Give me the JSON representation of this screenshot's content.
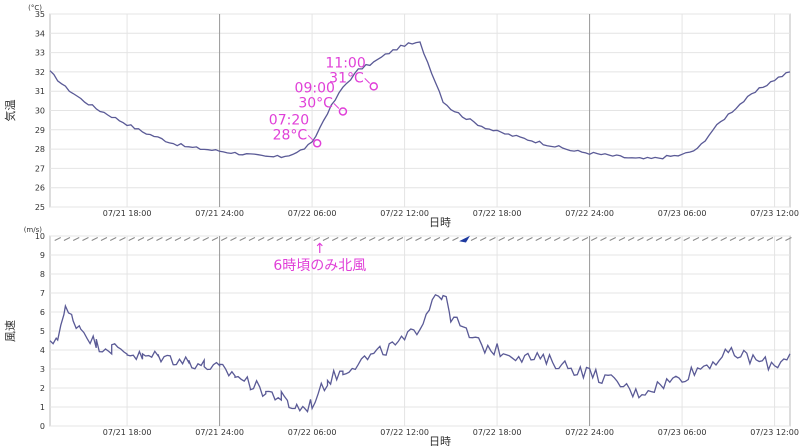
{
  "chart_data": [
    {
      "type": "line",
      "title": "",
      "ylabel": "気温",
      "unit": "(°C)",
      "xlabel": "日時",
      "ylim": [
        25,
        35
      ],
      "yticks": [
        "25",
        "26",
        "27",
        "28",
        "29",
        "30",
        "31",
        "32",
        "33",
        "34",
        "35"
      ],
      "x_tick_labels": [
        "07/21 18:00",
        "07/21 24:00",
        "07/22 06:00",
        "07/22 12:00",
        "07/22 18:00",
        "07/22 24:00",
        "07/23 06:00",
        "07/23 12:00"
      ],
      "x_range_hours": [
        13,
        61
      ],
      "grid": true,
      "series": [
        {
          "color": "#5a5a96",
          "x": [
            13,
            14,
            15,
            16,
            17,
            18,
            19,
            20,
            21,
            22,
            23,
            24,
            25,
            26,
            27,
            28,
            29,
            30,
            31,
            32,
            33,
            34,
            35,
            36,
            37,
            38,
            38.5,
            39,
            40,
            41,
            42,
            43,
            44,
            45,
            46,
            47,
            48,
            49,
            50,
            51,
            52,
            53,
            54,
            55,
            56,
            57,
            58,
            59,
            60,
            61
          ],
          "y": [
            32,
            31.2,
            30.6,
            30.1,
            29.7,
            29.3,
            28.9,
            28.6,
            28.3,
            28.1,
            28.0,
            27.9,
            27.8,
            27.7,
            27.6,
            27.6,
            27.8,
            28.3,
            29.9,
            31.2,
            32.1,
            32.5,
            33.0,
            33.4,
            33.5,
            31.5,
            30.5,
            30.1,
            29.6,
            29.2,
            28.9,
            28.7,
            28.5,
            28.3,
            28.1,
            27.9,
            27.8,
            27.7,
            27.6,
            27.5,
            27.5,
            27.6,
            27.7,
            28.0,
            29.0,
            29.8,
            30.5,
            31.1,
            31.6,
            32.0
          ]
        }
      ],
      "annotations": [
        {
          "time": "07:20",
          "value": "28°C",
          "x": 30.33,
          "y": 28.3
        },
        {
          "time": "09:00",
          "value": "30°C",
          "x": 32.0,
          "y": 29.95
        },
        {
          "time": "11:00",
          "value": "31°C",
          "x": 34.0,
          "y": 31.25
        }
      ]
    },
    {
      "type": "line",
      "title": "",
      "ylabel": "風速",
      "unit": "(m/s)",
      "xlabel": "日時",
      "ylim": [
        0,
        10
      ],
      "yticks": [
        "0",
        "1",
        "2",
        "3",
        "4",
        "5",
        "6",
        "7",
        "8",
        "9",
        "10"
      ],
      "x_tick_labels": [
        "07/21 18:00",
        "07/21 24:00",
        "07/22 06:00",
        "07/22 12:00",
        "07/22 18:00",
        "07/22 24:00",
        "07/23 06:00",
        "07/23 12:00"
      ],
      "x_range_hours": [
        13,
        61
      ],
      "grid": true,
      "series": [
        {
          "color": "#5a5a96",
          "x": [
            13,
            13.5,
            14,
            14.5,
            15,
            16,
            17,
            18,
            19,
            20,
            21,
            22,
            23,
            24,
            25,
            26,
            27,
            28,
            28.5,
            29,
            29.5,
            30,
            31,
            32,
            33,
            34,
            35,
            36,
            37,
            38,
            38.5,
            39,
            40,
            41,
            42,
            43,
            44,
            45,
            46,
            47,
            48,
            49,
            50,
            51,
            52,
            53,
            54,
            55,
            56,
            57,
            58,
            59,
            60,
            61
          ],
          "y": [
            4.2,
            4.8,
            6.1,
            5.6,
            5.2,
            4.3,
            4.1,
            3.9,
            3.6,
            3.7,
            3.5,
            3.4,
            3.2,
            3.0,
            2.7,
            2.2,
            1.8,
            1.5,
            1.1,
            1.0,
            0.95,
            1.2,
            2.4,
            2.9,
            3.4,
            3.7,
            4.1,
            4.5,
            5.3,
            7.0,
            6.9,
            5.8,
            4.9,
            4.2,
            4.0,
            3.8,
            3.6,
            3.5,
            3.3,
            3.0,
            2.8,
            2.5,
            2.2,
            1.7,
            2.0,
            2.3,
            2.6,
            3.0,
            3.4,
            3.8,
            3.7,
            3.4,
            3.2,
            3.8
          ]
        }
      ],
      "wind_direction_strip": {
        "color": "#888888",
        "north_color": "#1e3aa0",
        "north_wind_hours": [
          39.5,
          40.2
        ]
      },
      "annotations": [
        {
          "text": "↑",
          "x": 30.5
        },
        {
          "text": "6時頃のみ北風",
          "x": 30.5
        }
      ]
    }
  ],
  "annotation_color": "#e040d8"
}
